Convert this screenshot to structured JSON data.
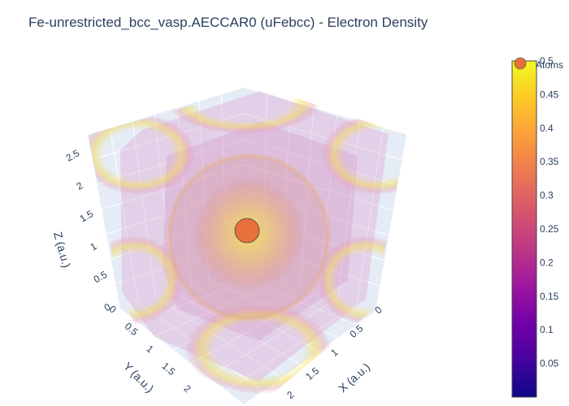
{
  "chart_data": {
    "type": "isosurface-3d",
    "title": "Fe-unrestricted_bcc_vasp.AECCAR0 (uFebcc) - Electron Density",
    "axes": {
      "x": {
        "label": "X (a.u.)",
        "range": [
          0,
          2.7
        ],
        "ticks": [
          "0",
          "0.5",
          "1",
          "1.5",
          "2"
        ]
      },
      "y": {
        "label": "Y (a.u.)",
        "range": [
          0,
          2.7
        ],
        "ticks": [
          "0",
          "0.5",
          "1",
          "1.5",
          "2"
        ]
      },
      "z": {
        "label": "Z (a.u.)",
        "range": [
          0,
          2.7
        ],
        "ticks": [
          "0",
          "0.5",
          "1",
          "1.5",
          "2",
          "2.5"
        ]
      }
    },
    "colorbar": {
      "colorscale": "plasma",
      "range": [
        0,
        0.5
      ],
      "ticks": [
        "0.05",
        "0.1",
        "0.15",
        "0.2",
        "0.25",
        "0.3",
        "0.35",
        "0.4",
        "0.45",
        "0.5"
      ]
    },
    "legend": {
      "placement": "top-right",
      "entries": [
        {
          "name": "Atoms",
          "color": "#e8703a"
        }
      ]
    },
    "atoms": [
      {
        "x": 1.35,
        "y": 1.35,
        "z": 1.35,
        "color": "#e8703a"
      }
    ],
    "colors": {
      "scene_bg": "#e5ecf6",
      "grid": "#ffffff",
      "atom": "#e8703a",
      "iso_high": "#f5e34a",
      "iso_mid": "#e39aa8",
      "iso_low": "#d874b8"
    }
  }
}
